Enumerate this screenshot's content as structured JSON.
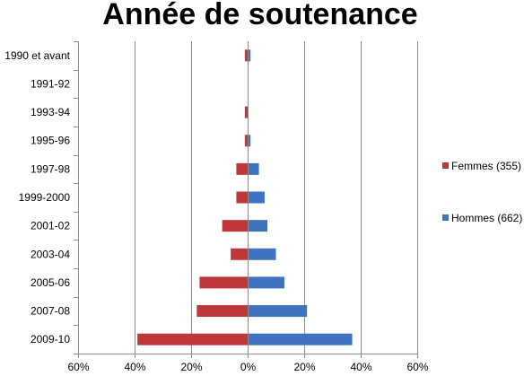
{
  "colors": {
    "femmes": "#c0373a",
    "hommes": "#3f72bf",
    "grid": "#8c8c8c",
    "axis": "#8c8c8c"
  },
  "chart_data": {
    "type": "bar",
    "orientation": "horizontal",
    "title": "Année de soutenance",
    "categories": [
      "1990 et avant",
      "1991-92",
      "1993-94",
      "1995-96",
      "1997-98",
      "1999-2000",
      "2001-02",
      "2003-04",
      "2005-06",
      "2007-08",
      "2009-10"
    ],
    "series": [
      {
        "name": "Femmes (355)",
        "values": [
          -1,
          0,
          -1,
          -1,
          -4,
          -4,
          -9,
          -6,
          -17,
          -18,
          -39
        ]
      },
      {
        "name": "Hommes (662)",
        "values": [
          1,
          0,
          0,
          1,
          4,
          6,
          7,
          10,
          13,
          21,
          37
        ]
      }
    ],
    "xlim": [
      -60,
      60
    ],
    "xticks": [
      "60%",
      "40%",
      "20%",
      "0%",
      "20%",
      "40%",
      "60%"
    ],
    "grid": true,
    "legend": "right"
  }
}
